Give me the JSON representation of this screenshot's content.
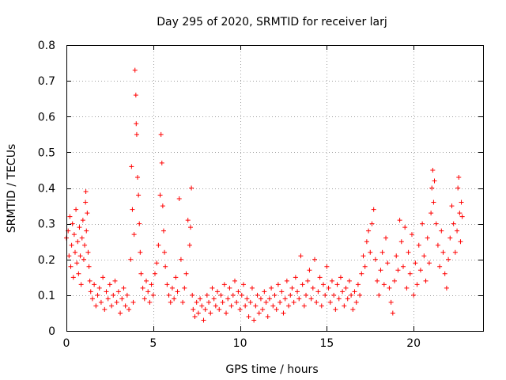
{
  "chart_data": {
    "type": "scatter",
    "title": "Day 295 of 2020, SRMTID for receiver larj",
    "xlabel": "GPS time / hours",
    "ylabel": "SRMTID / TECUs",
    "xlim": [
      0,
      24
    ],
    "ylim": [
      0,
      0.8
    ],
    "xticks": [
      0,
      5,
      10,
      15,
      20
    ],
    "xtick_labels": [
      "0",
      "5",
      "10",
      "15",
      "20"
    ],
    "yticks": [
      0,
      0.1,
      0.2,
      0.3,
      0.4,
      0.5,
      0.6,
      0.7,
      0.8
    ],
    "ytick_labels": [
      "0",
      "0.1",
      "0.2",
      "0.3",
      "0.4",
      "0.5",
      "0.6",
      "0.7",
      "0.8"
    ],
    "grid": true,
    "marker": "+",
    "color": "#ff0000",
    "series": [
      {
        "name": "SRMTID",
        "points": [
          [
            0.0,
            0.26
          ],
          [
            0.1,
            0.28
          ],
          [
            0.15,
            0.21
          ],
          [
            0.2,
            0.32
          ],
          [
            0.25,
            0.18
          ],
          [
            0.3,
            0.24
          ],
          [
            0.35,
            0.3
          ],
          [
            0.4,
            0.15
          ],
          [
            0.45,
            0.27
          ],
          [
            0.5,
            0.22
          ],
          [
            0.55,
            0.34
          ],
          [
            0.6,
            0.19
          ],
          [
            0.65,
            0.25
          ],
          [
            0.7,
            0.16
          ],
          [
            0.75,
            0.29
          ],
          [
            0.8,
            0.21
          ],
          [
            0.85,
            0.13
          ],
          [
            0.9,
            0.26
          ],
          [
            0.95,
            0.31
          ],
          [
            1.0,
            0.2
          ],
          [
            1.05,
            0.24
          ],
          [
            1.1,
            0.36
          ],
          [
            1.12,
            0.39
          ],
          [
            1.15,
            0.28
          ],
          [
            1.2,
            0.33
          ],
          [
            1.25,
            0.22
          ],
          [
            1.3,
            0.18
          ],
          [
            1.35,
            0.14
          ],
          [
            1.4,
            0.11
          ],
          [
            1.5,
            0.09
          ],
          [
            1.6,
            0.13
          ],
          [
            1.7,
            0.07
          ],
          [
            1.8,
            0.1
          ],
          [
            1.9,
            0.12
          ],
          [
            2.0,
            0.08
          ],
          [
            2.1,
            0.15
          ],
          [
            2.2,
            0.06
          ],
          [
            2.3,
            0.11
          ],
          [
            2.4,
            0.09
          ],
          [
            2.5,
            0.13
          ],
          [
            2.6,
            0.07
          ],
          [
            2.7,
            0.1
          ],
          [
            2.8,
            0.14
          ],
          [
            2.9,
            0.08
          ],
          [
            3.0,
            0.11
          ],
          [
            3.1,
            0.05
          ],
          [
            3.2,
            0.09
          ],
          [
            3.3,
            0.12
          ],
          [
            3.4,
            0.07
          ],
          [
            3.5,
            0.1
          ],
          [
            3.6,
            0.06
          ],
          [
            3.7,
            0.2
          ],
          [
            3.75,
            0.46
          ],
          [
            3.8,
            0.34
          ],
          [
            3.85,
            0.08
          ],
          [
            3.9,
            0.27
          ],
          [
            3.95,
            0.73
          ],
          [
            4.0,
            0.66
          ],
          [
            4.02,
            0.58
          ],
          [
            4.05,
            0.55
          ],
          [
            4.1,
            0.43
          ],
          [
            4.15,
            0.38
          ],
          [
            4.2,
            0.3
          ],
          [
            4.25,
            0.22
          ],
          [
            4.3,
            0.16
          ],
          [
            4.4,
            0.12
          ],
          [
            4.5,
            0.09
          ],
          [
            4.6,
            0.14
          ],
          [
            4.7,
            0.11
          ],
          [
            4.8,
            0.08
          ],
          [
            4.9,
            0.13
          ],
          [
            5.0,
            0.1
          ],
          [
            5.1,
            0.16
          ],
          [
            5.2,
            0.19
          ],
          [
            5.3,
            0.24
          ],
          [
            5.4,
            0.38
          ],
          [
            5.45,
            0.55
          ],
          [
            5.5,
            0.47
          ],
          [
            5.55,
            0.35
          ],
          [
            5.6,
            0.28
          ],
          [
            5.65,
            0.22
          ],
          [
            5.7,
            0.18
          ],
          [
            5.8,
            0.13
          ],
          [
            5.9,
            0.1
          ],
          [
            6.0,
            0.08
          ],
          [
            6.1,
            0.12
          ],
          [
            6.2,
            0.09
          ],
          [
            6.3,
            0.15
          ],
          [
            6.4,
            0.11
          ],
          [
            6.5,
            0.37
          ],
          [
            6.6,
            0.2
          ],
          [
            6.7,
            0.08
          ],
          [
            6.8,
            0.12
          ],
          [
            6.9,
            0.16
          ],
          [
            7.0,
            0.31
          ],
          [
            7.1,
            0.24
          ],
          [
            7.15,
            0.29
          ],
          [
            7.2,
            0.4
          ],
          [
            7.25,
            0.1
          ],
          [
            7.3,
            0.06
          ],
          [
            7.4,
            0.04
          ],
          [
            7.5,
            0.08
          ],
          [
            7.6,
            0.05
          ],
          [
            7.7,
            0.09
          ],
          [
            7.8,
            0.07
          ],
          [
            7.9,
            0.03
          ],
          [
            8.0,
            0.06
          ],
          [
            8.1,
            0.1
          ],
          [
            8.2,
            0.08
          ],
          [
            8.3,
            0.05
          ],
          [
            8.4,
            0.12
          ],
          [
            8.5,
            0.09
          ],
          [
            8.6,
            0.07
          ],
          [
            8.7,
            0.11
          ],
          [
            8.8,
            0.06
          ],
          [
            8.9,
            0.1
          ],
          [
            9.0,
            0.08
          ],
          [
            9.1,
            0.13
          ],
          [
            9.2,
            0.05
          ],
          [
            9.3,
            0.09
          ],
          [
            9.4,
            0.12
          ],
          [
            9.5,
            0.07
          ],
          [
            9.6,
            0.1
          ],
          [
            9.7,
            0.14
          ],
          [
            9.8,
            0.08
          ],
          [
            9.9,
            0.11
          ],
          [
            10.0,
            0.06
          ],
          [
            10.1,
            0.1
          ],
          [
            10.2,
            0.13
          ],
          [
            10.3,
            0.07
          ],
          [
            10.4,
            0.09
          ],
          [
            10.5,
            0.04
          ],
          [
            10.6,
            0.08
          ],
          [
            10.7,
            0.12
          ],
          [
            10.8,
            0.03
          ],
          [
            10.9,
            0.07
          ],
          [
            11.0,
            0.1
          ],
          [
            11.1,
            0.05
          ],
          [
            11.2,
            0.09
          ],
          [
            11.3,
            0.06
          ],
          [
            11.4,
            0.11
          ],
          [
            11.5,
            0.08
          ],
          [
            11.6,
            0.04
          ],
          [
            11.7,
            0.09
          ],
          [
            11.8,
            0.12
          ],
          [
            11.9,
            0.07
          ],
          [
            12.0,
            0.1
          ],
          [
            12.1,
            0.06
          ],
          [
            12.2,
            0.13
          ],
          [
            12.3,
            0.08
          ],
          [
            12.4,
            0.11
          ],
          [
            12.5,
            0.05
          ],
          [
            12.6,
            0.09
          ],
          [
            12.7,
            0.14
          ],
          [
            12.8,
            0.07
          ],
          [
            12.9,
            0.1
          ],
          [
            13.0,
            0.12
          ],
          [
            13.1,
            0.08
          ],
          [
            13.2,
            0.15
          ],
          [
            13.3,
            0.11
          ],
          [
            13.4,
            0.09
          ],
          [
            13.5,
            0.21
          ],
          [
            13.6,
            0.13
          ],
          [
            13.7,
            0.07
          ],
          [
            13.8,
            0.1
          ],
          [
            13.9,
            0.14
          ],
          [
            14.0,
            0.17
          ],
          [
            14.1,
            0.09
          ],
          [
            14.2,
            0.12
          ],
          [
            14.3,
            0.2
          ],
          [
            14.4,
            0.08
          ],
          [
            14.5,
            0.11
          ],
          [
            14.6,
            0.15
          ],
          [
            14.7,
            0.07
          ],
          [
            14.8,
            0.13
          ],
          [
            14.9,
            0.1
          ],
          [
            15.0,
            0.18
          ],
          [
            15.1,
            0.12
          ],
          [
            15.2,
            0.08
          ],
          [
            15.3,
            0.14
          ],
          [
            15.4,
            0.1
          ],
          [
            15.5,
            0.06
          ],
          [
            15.6,
            0.13
          ],
          [
            15.7,
            0.09
          ],
          [
            15.8,
            0.15
          ],
          [
            15.9,
            0.11
          ],
          [
            16.0,
            0.07
          ],
          [
            16.1,
            0.12
          ],
          [
            16.2,
            0.09
          ],
          [
            16.3,
            0.14
          ],
          [
            16.4,
            0.1
          ],
          [
            16.5,
            0.06
          ],
          [
            16.6,
            0.11
          ],
          [
            16.7,
            0.08
          ],
          [
            16.8,
            0.13
          ],
          [
            16.9,
            0.1
          ],
          [
            17.0,
            0.16
          ],
          [
            17.1,
            0.21
          ],
          [
            17.2,
            0.18
          ],
          [
            17.3,
            0.25
          ],
          [
            17.4,
            0.28
          ],
          [
            17.5,
            0.22
          ],
          [
            17.6,
            0.3
          ],
          [
            17.7,
            0.34
          ],
          [
            17.8,
            0.2
          ],
          [
            17.9,
            0.14
          ],
          [
            18.0,
            0.1
          ],
          [
            18.1,
            0.17
          ],
          [
            18.2,
            0.22
          ],
          [
            18.3,
            0.13
          ],
          [
            18.4,
            0.26
          ],
          [
            18.5,
            0.19
          ],
          [
            18.6,
            0.12
          ],
          [
            18.7,
            0.08
          ],
          [
            18.8,
            0.05
          ],
          [
            18.9,
            0.14
          ],
          [
            19.0,
            0.21
          ],
          [
            19.1,
            0.17
          ],
          [
            19.2,
            0.31
          ],
          [
            19.3,
            0.25
          ],
          [
            19.4,
            0.18
          ],
          [
            19.5,
            0.29
          ],
          [
            19.6,
            0.12
          ],
          [
            19.7,
            0.22
          ],
          [
            19.8,
            0.16
          ],
          [
            19.9,
            0.27
          ],
          [
            20.0,
            0.1
          ],
          [
            20.1,
            0.19
          ],
          [
            20.2,
            0.13
          ],
          [
            20.3,
            0.24
          ],
          [
            20.4,
            0.17
          ],
          [
            20.5,
            0.3
          ],
          [
            20.6,
            0.21
          ],
          [
            20.7,
            0.14
          ],
          [
            20.8,
            0.26
          ],
          [
            20.9,
            0.19
          ],
          [
            21.0,
            0.33
          ],
          [
            21.05,
            0.4
          ],
          [
            21.1,
            0.45
          ],
          [
            21.15,
            0.36
          ],
          [
            21.2,
            0.42
          ],
          [
            21.3,
            0.3
          ],
          [
            21.4,
            0.24
          ],
          [
            21.5,
            0.18
          ],
          [
            21.6,
            0.28
          ],
          [
            21.7,
            0.22
          ],
          [
            21.8,
            0.16
          ],
          [
            21.9,
            0.12
          ],
          [
            22.0,
            0.2
          ],
          [
            22.1,
            0.26
          ],
          [
            22.2,
            0.35
          ],
          [
            22.3,
            0.3
          ],
          [
            22.4,
            0.22
          ],
          [
            22.5,
            0.28
          ],
          [
            22.55,
            0.4
          ],
          [
            22.6,
            0.43
          ],
          [
            22.65,
            0.33
          ],
          [
            22.7,
            0.25
          ],
          [
            22.75,
            0.36
          ],
          [
            22.8,
            0.32
          ]
        ]
      }
    ]
  }
}
